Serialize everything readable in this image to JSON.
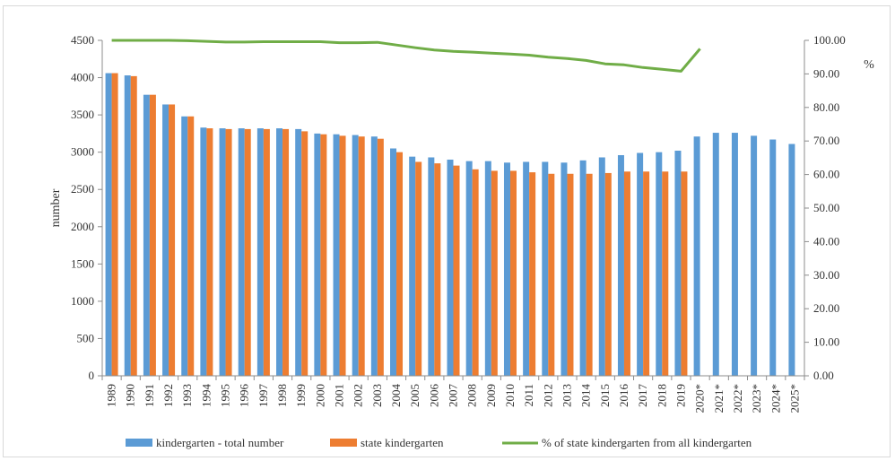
{
  "chart_data": {
    "type": "bar",
    "categories": [
      "1989",
      "1990",
      "1991",
      "1992",
      "1993",
      "1994",
      "1995",
      "1996",
      "1997",
      "1998",
      "1999",
      "2000",
      "2001",
      "2002",
      "2003",
      "2004",
      "2005",
      "2006",
      "2007",
      "2008",
      "2009",
      "2010",
      "2011",
      "2012",
      "2013",
      "2014",
      "2015",
      "2016",
      "2017",
      "2018",
      "2019",
      "2020*",
      "2021*",
      "2022*",
      "2023*",
      "2024*",
      "2025*"
    ],
    "series": [
      {
        "name": "kindergarten - total number",
        "kind": "bar",
        "axis": "left",
        "color": "#5b9bd5",
        "values": [
          4060,
          4030,
          3770,
          3640,
          3480,
          3330,
          3320,
          3320,
          3320,
          3320,
          3310,
          3250,
          3240,
          3230,
          3210,
          3050,
          2940,
          2930,
          2900,
          2880,
          2880,
          2860,
          2870,
          2870,
          2860,
          2890,
          2930,
          2960,
          2990,
          3000,
          3020,
          3210,
          3260,
          3260,
          3220,
          3170,
          3110
        ]
      },
      {
        "name": "state kindergarten",
        "kind": "bar",
        "axis": "left",
        "color": "#ed7d31",
        "values": [
          4060,
          4020,
          3770,
          3640,
          3480,
          3320,
          3310,
          3310,
          3310,
          3310,
          3280,
          3240,
          3220,
          3210,
          3180,
          3000,
          2870,
          2850,
          2820,
          2770,
          2750,
          2750,
          2730,
          2710,
          2710,
          2710,
          2720,
          2740,
          2740,
          2740,
          2740,
          null,
          null,
          null,
          null,
          null,
          null
        ]
      },
      {
        "name": "% of state kindergarten from all kindergarten",
        "kind": "line",
        "axis": "right",
        "color": "#70ad47",
        "values": [
          100,
          100,
          100,
          100,
          99.9,
          99.7,
          99.5,
          99.5,
          99.6,
          99.6,
          99.6,
          99.6,
          99.3,
          99.3,
          99.4,
          98.6,
          97.8,
          97.1,
          96.7,
          96.5,
          96.2,
          95.9,
          95.6,
          95,
          94.6,
          94,
          93,
          92.7,
          91.9,
          91.4,
          90.8,
          97.5,
          null,
          null,
          null,
          null,
          null
        ]
      }
    ],
    "ylabel": "number",
    "y2label": "%",
    "ylim": [
      0,
      4500
    ],
    "y2lim": [
      0,
      100
    ],
    "yticks": [
      "0",
      "500",
      "1000",
      "1500",
      "2000",
      "2500",
      "3000",
      "3500",
      "4000",
      "4500"
    ],
    "y2ticks": [
      "0.00",
      "10.00",
      "20.00",
      "30.00",
      "40.00",
      "50.00",
      "60.00",
      "70.00",
      "80.00",
      "90.00",
      "100.00"
    ],
    "grid": false,
    "legend": "bottom"
  }
}
